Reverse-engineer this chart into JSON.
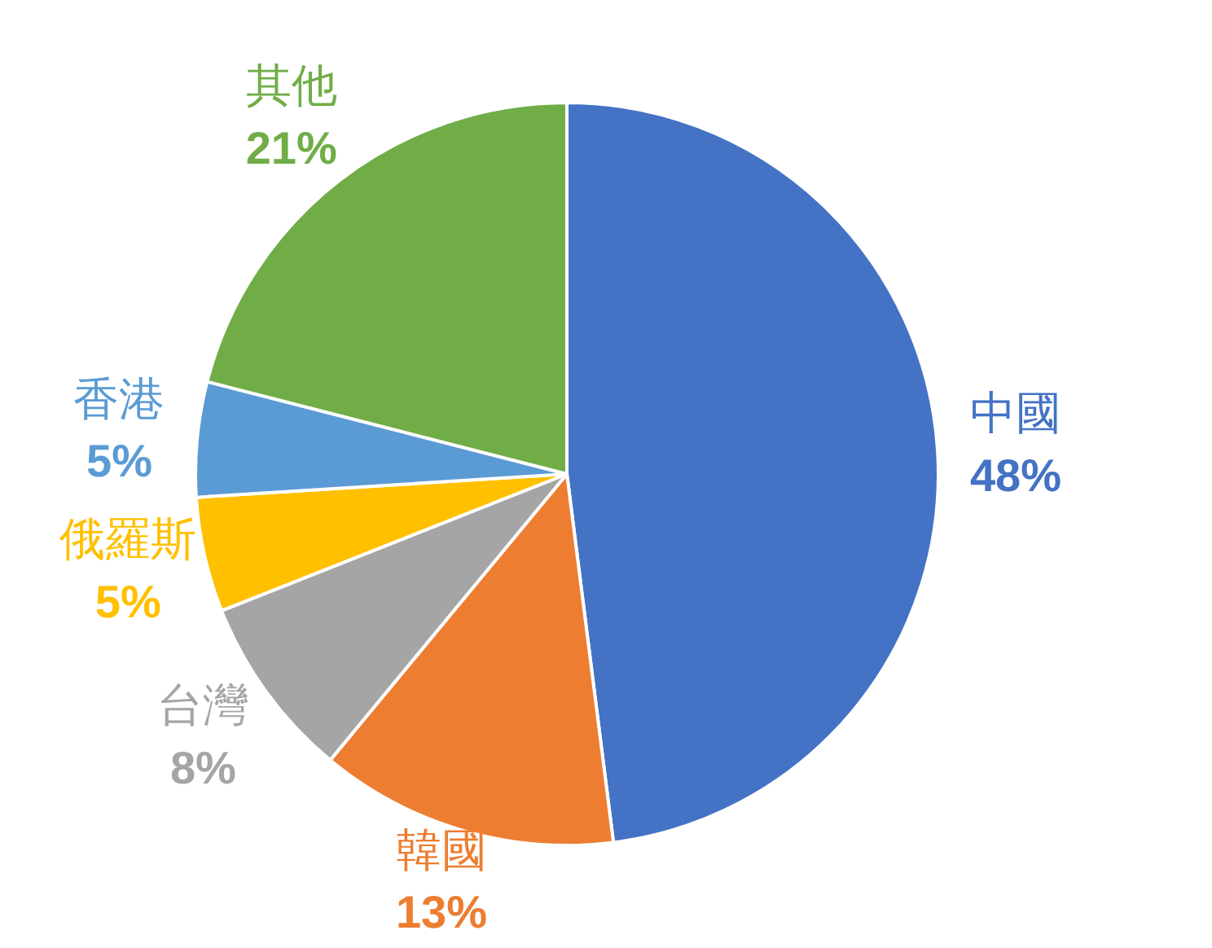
{
  "chart_data": {
    "type": "pie",
    "categories": [
      "中國",
      "韓國",
      "台灣",
      "俄羅斯",
      "香港",
      "其他"
    ],
    "values": [
      48,
      13,
      8,
      5,
      5,
      21
    ],
    "colors": [
      "#4472c4",
      "#ed7d31",
      "#a5a5a5",
      "#ffc000",
      "#5b9bd5",
      "#70ad47"
    ],
    "value_labels": [
      "48%",
      "13%",
      "8%",
      "5%",
      "5%",
      "21%"
    ],
    "legend": false
  }
}
